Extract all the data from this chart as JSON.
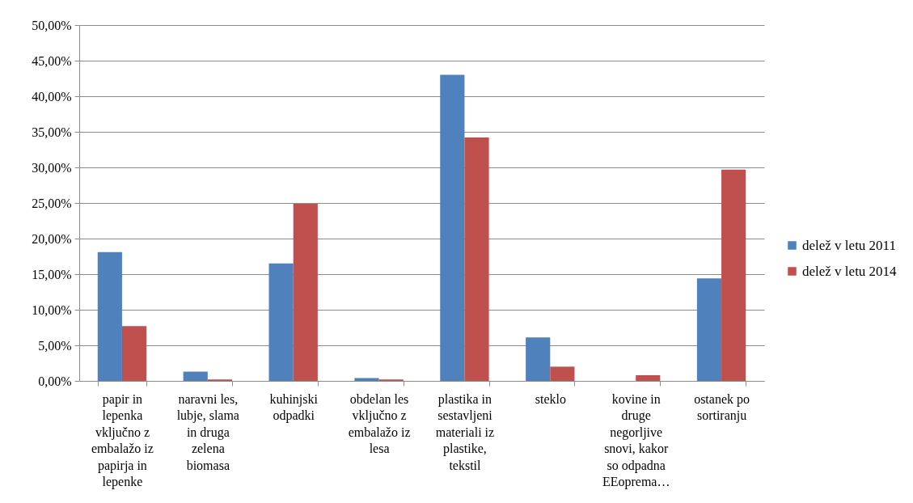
{
  "chart_data": {
    "type": "bar",
    "categories": [
      "papir in lepenka vključno z embalažo iz papirja in lepenke",
      "naravni les, lubje, slama in druga zelena biomasa",
      "kuhinjski odpadki",
      "obdelan les vključno z embalažo iz lesa",
      "plastika in sestavljeni materiali iz plastike, tekstil",
      "steklo",
      "kovine in druge negorljive snovi, kakor so odpadna EEoprema…",
      "ostanek po sortiranju"
    ],
    "series": [
      {
        "name": "delež v letu 2011",
        "color": "#4f81bd",
        "values": [
          18.1,
          1.3,
          16.5,
          0.4,
          43.0,
          6.1,
          0,
          14.4
        ]
      },
      {
        "name": "delež v letu 2014",
        "color": "#c0504d",
        "values": [
          7.7,
          0.2,
          24.9,
          0.2,
          34.2,
          2.0,
          0.8,
          29.7
        ]
      }
    ],
    "ylim": [
      0,
      50
    ],
    "yticks": [
      {
        "value": 0,
        "label": "0,00%"
      },
      {
        "value": 5,
        "label": "5,00%"
      },
      {
        "value": 10,
        "label": "10,00%"
      },
      {
        "value": 15,
        "label": "15,00%"
      },
      {
        "value": 20,
        "label": "20,00%"
      },
      {
        "value": 25,
        "label": "25,00%"
      },
      {
        "value": 30,
        "label": "30,00%"
      },
      {
        "value": 35,
        "label": "35,00%"
      },
      {
        "value": 40,
        "label": "40,00%"
      },
      {
        "value": 45,
        "label": "45,00%"
      },
      {
        "value": 50,
        "label": "50,00%"
      }
    ],
    "grid": "y",
    "legend": "right"
  }
}
